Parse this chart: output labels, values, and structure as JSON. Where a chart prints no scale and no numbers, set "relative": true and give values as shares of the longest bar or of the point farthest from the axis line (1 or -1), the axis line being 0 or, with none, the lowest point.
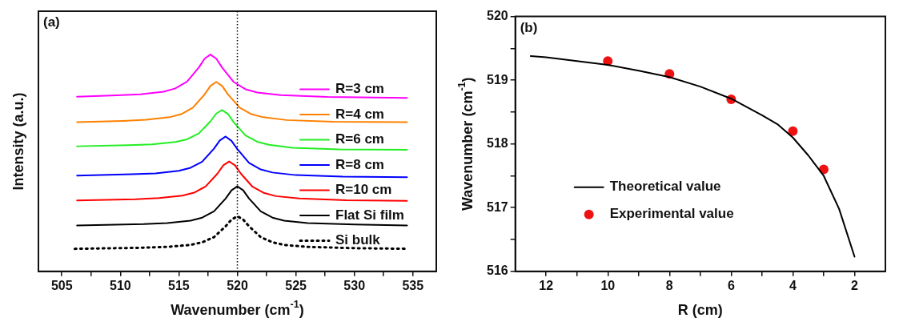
{
  "chart_data": [
    {
      "type": "line",
      "annotations": [
        "(a)"
      ],
      "xlabel": "Wavenumber (cm$^{-1}$)",
      "ylabel": "Intensity (a.u.)",
      "relative": true,
      "xlim": [
        503,
        537
      ],
      "xticks": [
        505,
        {
          "value": 507.5,
          "label": null
        },
        510,
        {
          "value": 512.5,
          "label": null
        },
        515,
        {
          "value": 517.5,
          "label": null
        },
        520,
        {
          "value": 522.5,
          "label": null
        },
        525,
        {
          "value": 527.5,
          "label": null
        },
        530,
        {
          "value": 532.5,
          "label": null
        },
        535
      ],
      "tick_labels": "x",
      "legend": "right",
      "ref_lines": [
        {
          "axis": "x",
          "value": 520,
          "color": "#000000",
          "line_style": "dotted"
        }
      ],
      "series": [
        {
          "name": "R=3 cm",
          "color": "#ff00ff",
          "x": [
            506.3,
            509.7,
            511.7,
            513.7,
            514.7,
            515.7,
            516.7,
            517.2,
            517.7,
            518.2,
            518.7,
            519.7,
            520.7,
            521.7,
            523.7,
            527.7,
            534.5
          ],
          "values": [
            0.806,
            0.812,
            0.817,
            0.829,
            0.844,
            0.875,
            0.94,
            0.981,
            1.0,
            0.981,
            0.94,
            0.873,
            0.84,
            0.825,
            0.813,
            0.805,
            0.8
          ]
        },
        {
          "name": "R=4 cm",
          "color": "#ff8000",
          "x": [
            506.3,
            510.2,
            512.2,
            514.2,
            515.2,
            516.2,
            517.2,
            517.7,
            518.2,
            518.7,
            519.2,
            520.2,
            521.2,
            522.2,
            524.2,
            528.2,
            534.5
          ],
          "values": [
            0.688,
            0.694,
            0.699,
            0.711,
            0.725,
            0.755,
            0.816,
            0.855,
            0.874,
            0.855,
            0.816,
            0.755,
            0.725,
            0.711,
            0.698,
            0.69,
            0.688
          ]
        },
        {
          "name": "R=6 cm",
          "color": "#22ee22",
          "x": [
            506.3,
            510.7,
            512.7,
            514.7,
            515.7,
            516.7,
            517.7,
            518.2,
            518.7,
            519.2,
            519.7,
            520.7,
            521.7,
            522.7,
            524.7,
            528.7,
            534.5
          ],
          "values": [
            0.577,
            0.582,
            0.586,
            0.597,
            0.609,
            0.636,
            0.692,
            0.728,
            0.744,
            0.726,
            0.687,
            0.627,
            0.598,
            0.584,
            0.57,
            0.563,
            0.561
          ]
        },
        {
          "name": "R=8 cm",
          "color": "#0000ff",
          "x": [
            506.3,
            511,
            513,
            515,
            516,
            517,
            518,
            518.5,
            519,
            519.5,
            520,
            521,
            522,
            523,
            525,
            529,
            534.5
          ],
          "values": [
            0.442,
            0.448,
            0.452,
            0.464,
            0.478,
            0.506,
            0.566,
            0.604,
            0.622,
            0.602,
            0.564,
            0.5,
            0.47,
            0.456,
            0.444,
            0.437,
            0.434
          ]
        },
        {
          "name": "R=10 cm",
          "color": "#ff0000",
          "x": [
            506.3,
            511.3,
            513.3,
            515.3,
            516.3,
            517.3,
            518.3,
            518.8,
            519.3,
            519.8,
            520.3,
            521.3,
            522.3,
            523.3,
            525.3,
            529.3,
            534.5
          ],
          "values": [
            0.327,
            0.333,
            0.338,
            0.349,
            0.363,
            0.392,
            0.451,
            0.489,
            0.507,
            0.489,
            0.451,
            0.39,
            0.361,
            0.347,
            0.336,
            0.328,
            0.325
          ]
        },
        {
          "name": "Flat Si film",
          "color": "#000000",
          "x": [
            506.3,
            512,
            514,
            516,
            517,
            518,
            519,
            519.5,
            520,
            520.5,
            521,
            522,
            523,
            524,
            526,
            530,
            534.5
          ],
          "values": [
            0.212,
            0.218,
            0.223,
            0.234,
            0.248,
            0.277,
            0.336,
            0.374,
            0.392,
            0.374,
            0.336,
            0.277,
            0.248,
            0.234,
            0.223,
            0.216,
            0.212
          ]
        },
        {
          "name": "Si bulk",
          "color": "#000000",
          "line_style": "dotted",
          "x": [
            506.1,
            512,
            514,
            516,
            517,
            518,
            519,
            519.5,
            520,
            520.5,
            521,
            522,
            523,
            524,
            526,
            530,
            534.5
          ],
          "values": [
            0.104,
            0.109,
            0.113,
            0.122,
            0.134,
            0.158,
            0.208,
            0.239,
            0.254,
            0.239,
            0.208,
            0.158,
            0.134,
            0.122,
            0.113,
            0.107,
            0.104
          ]
        }
      ]
    },
    {
      "type": "line",
      "annotations": [
        "(b)"
      ],
      "xlabel": "R (cm)",
      "ylabel": "Wavenumber (cm$^{-1}$)",
      "xlim": [
        13,
        1
      ],
      "xticks": [
        12,
        {
          "value": 11,
          "label": null
        },
        10,
        {
          "value": 9,
          "label": null
        },
        8,
        {
          "value": 7,
          "label": null
        },
        6,
        {
          "value": 5,
          "label": null
        },
        4,
        {
          "value": 3,
          "label": null
        },
        2
      ],
      "ylim": [
        516,
        520
      ],
      "yticks": [
        516,
        {
          "value": 516.5,
          "label": null
        },
        517,
        {
          "value": 517.5,
          "label": null
        },
        518,
        {
          "value": 518.5,
          "label": null
        },
        519,
        {
          "value": 519.5,
          "label": null
        },
        520
      ],
      "legend": "bottom left",
      "series": [
        {
          "name": "Theoretical value",
          "color": "#000000",
          "x": [
            12.5,
            12,
            11,
            10,
            9,
            8,
            7,
            6,
            5,
            4.5,
            4,
            3.5,
            3,
            2.5,
            2
          ],
          "values": [
            519.38,
            519.36,
            519.3,
            519.24,
            519.15,
            519.05,
            518.9,
            518.71,
            518.45,
            518.31,
            518.1,
            517.82,
            517.5,
            516.98,
            516.23
          ]
        },
        {
          "type": "scatter",
          "name": "Experimental value",
          "color": "#ee1111",
          "marker": "circle",
          "x": [
            10,
            8,
            6,
            4,
            3
          ],
          "values": [
            519.3,
            519.1,
            518.7,
            518.2,
            517.6
          ]
        }
      ]
    }
  ]
}
